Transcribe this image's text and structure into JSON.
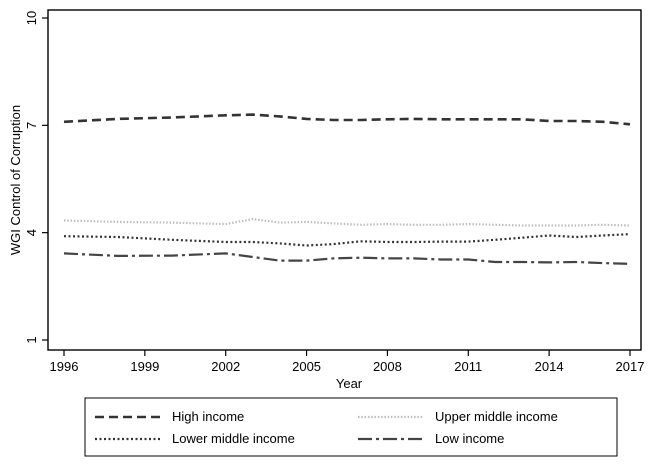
{
  "chart_data": {
    "type": "line",
    "title": "",
    "xlabel": "Year",
    "ylabel": "WGI Control of Corruption",
    "xlim": [
      1996,
      2017
    ],
    "ylim": [
      1,
      10
    ],
    "x_ticks": [
      "1996",
      "1999",
      "2002",
      "2005",
      "2008",
      "2011",
      "2014",
      "2017"
    ],
    "y_ticks": [
      "1",
      "4",
      "7",
      "10"
    ],
    "grid": false,
    "legend_position": "bottom",
    "x": [
      1996,
      1998,
      2000,
      2002,
      2003,
      2004,
      2005,
      2006,
      2007,
      2008,
      2009,
      2010,
      2011,
      2012,
      2013,
      2014,
      2015,
      2016,
      2017
    ],
    "series": [
      {
        "name": "High income",
        "style": "dashed",
        "color": "#333333",
        "values": [
          7.1,
          7.18,
          7.22,
          7.28,
          7.3,
          7.25,
          7.18,
          7.15,
          7.15,
          7.17,
          7.18,
          7.17,
          7.17,
          7.17,
          7.17,
          7.12,
          7.12,
          7.1,
          7.03
        ]
      },
      {
        "name": "Upper middle income",
        "style": "dotted-light",
        "color": "#bdbdbd",
        "values": [
          4.34,
          4.3,
          4.28,
          4.24,
          4.38,
          4.28,
          4.3,
          4.26,
          4.22,
          4.24,
          4.22,
          4.22,
          4.24,
          4.22,
          4.2,
          4.2,
          4.2,
          4.22,
          4.2
        ]
      },
      {
        "name": "Lower middle income",
        "style": "dotted",
        "color": "#333333",
        "values": [
          3.9,
          3.88,
          3.8,
          3.74,
          3.74,
          3.7,
          3.64,
          3.68,
          3.76,
          3.74,
          3.74,
          3.75,
          3.75,
          3.8,
          3.86,
          3.92,
          3.88,
          3.92,
          3.96
        ]
      },
      {
        "name": "Low income",
        "style": "long-dash-dot",
        "color": "#444444",
        "values": [
          3.42,
          3.35,
          3.36,
          3.42,
          3.32,
          3.22,
          3.22,
          3.28,
          3.3,
          3.28,
          3.28,
          3.25,
          3.25,
          3.18,
          3.18,
          3.17,
          3.18,
          3.15,
          3.13
        ]
      }
    ]
  }
}
